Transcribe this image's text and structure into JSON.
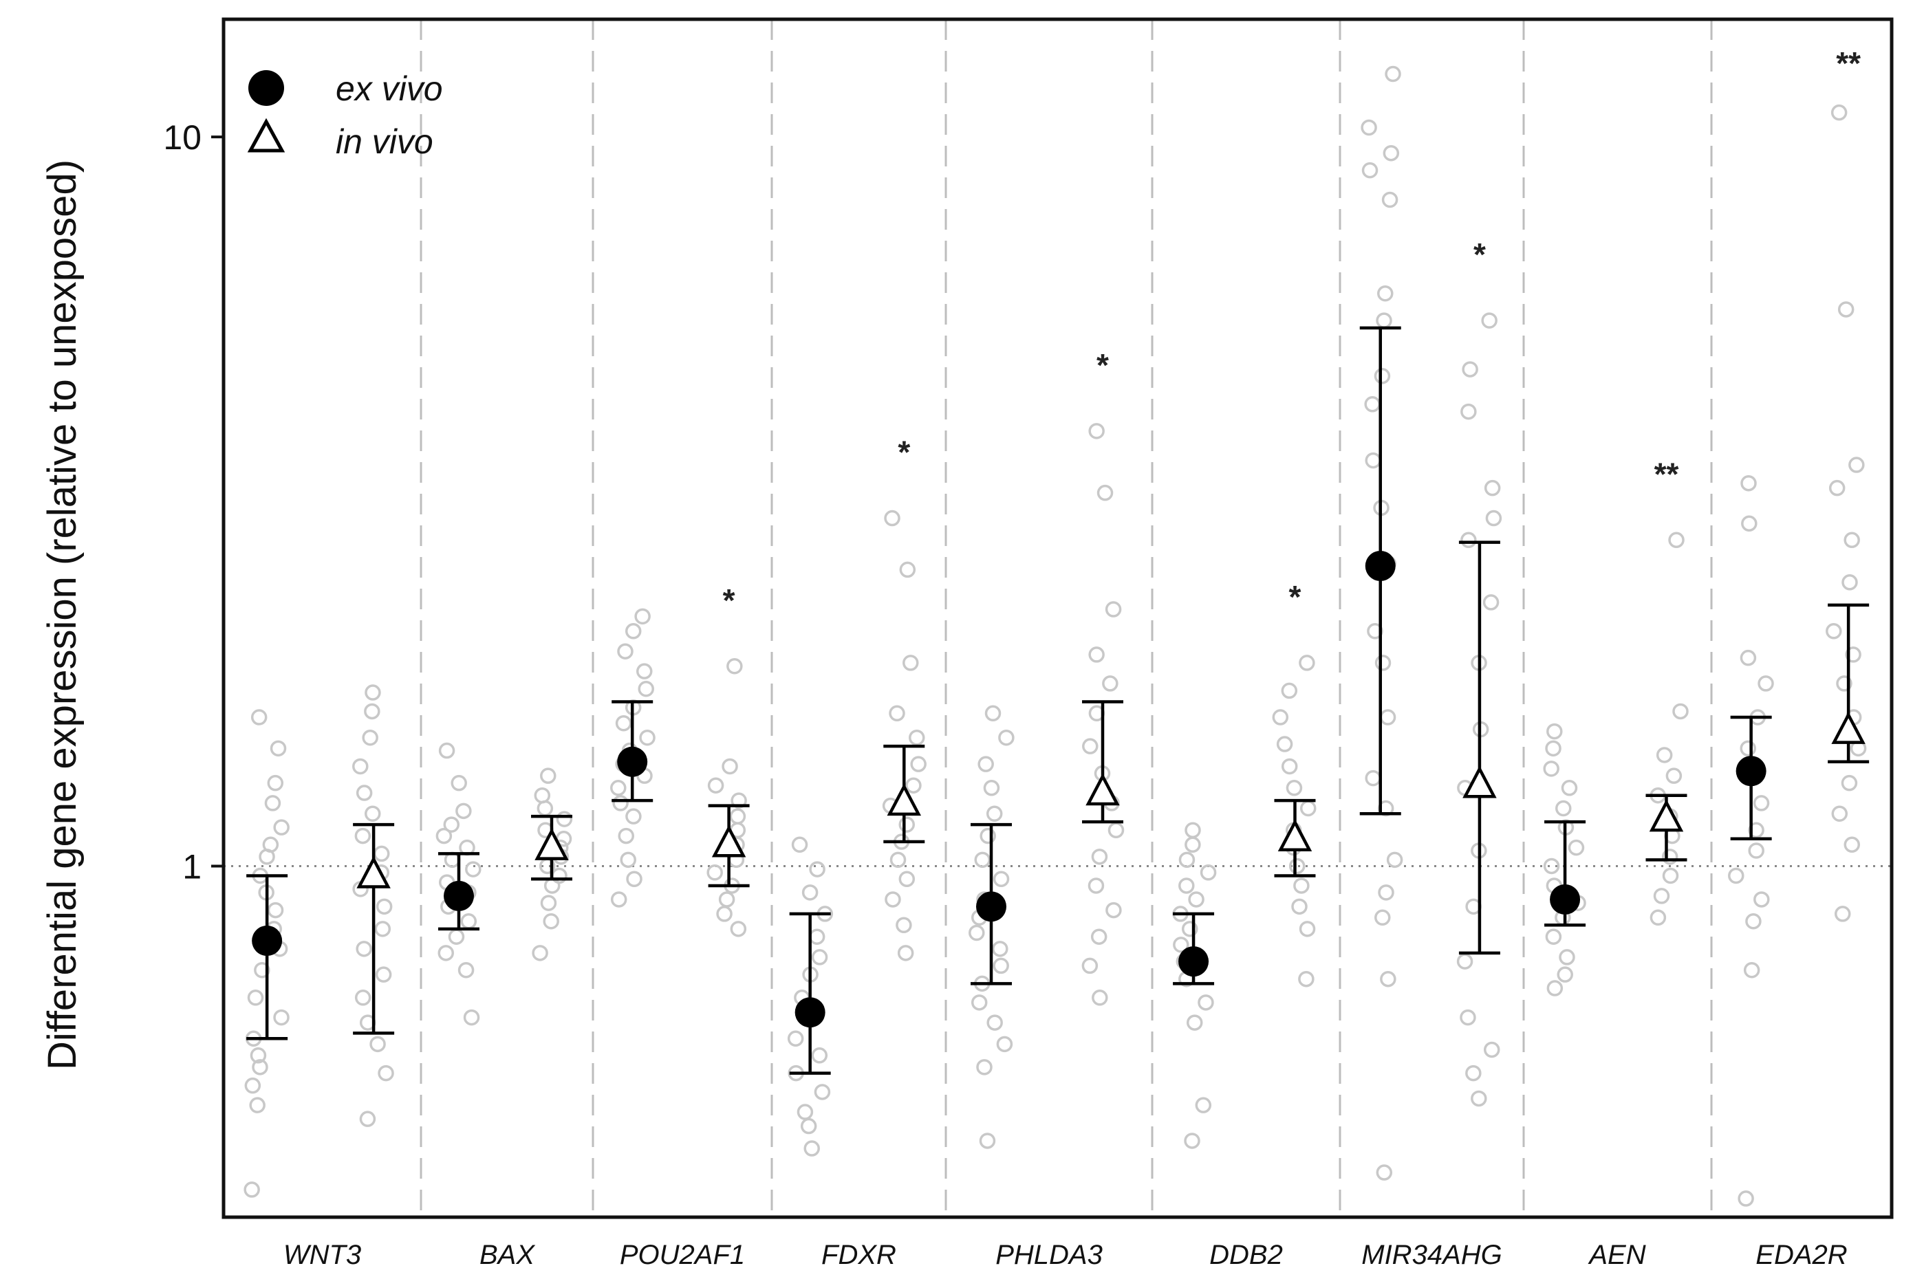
{
  "chart_data": {
    "type": "scatter",
    "ylabel": "Differential gene expression (relative to unexposed)",
    "xlabel": "",
    "yscale": "log",
    "ylim": [
      0.33,
      14.5
    ],
    "yticks": [
      1,
      10
    ],
    "ytick_labels": [
      "1",
      "10"
    ],
    "reference_line": 1,
    "grid": false,
    "legend_position": "top-left",
    "categories": [
      "WNT3",
      "BAX",
      "POU2AF1",
      "FDXR",
      "PHLDA3",
      "DDB2",
      "MIR34AHG",
      "AEN",
      "EDA2R"
    ],
    "series": [
      {
        "name": "ex vivo",
        "marker": "filled-circle",
        "mean": [
          0.79,
          0.91,
          1.39,
          0.63,
          0.88,
          0.74,
          2.58,
          0.9,
          1.35
        ],
        "lower": [
          0.58,
          0.82,
          1.23,
          0.52,
          0.69,
          0.69,
          1.18,
          0.83,
          1.09
        ],
        "upper": [
          0.97,
          1.04,
          1.68,
          0.86,
          1.14,
          0.86,
          5.47,
          1.15,
          1.6
        ]
      },
      {
        "name": "in vivo",
        "marker": "open-triangle",
        "mean": [
          0.97,
          1.06,
          1.07,
          1.22,
          1.26,
          1.09,
          1.29,
          1.16,
          1.53
        ],
        "lower": [
          0.59,
          0.96,
          0.94,
          1.08,
          1.15,
          0.97,
          0.76,
          1.02,
          1.39
        ],
        "upper": [
          1.14,
          1.17,
          1.21,
          1.46,
          1.68,
          1.23,
          2.78,
          1.25,
          2.28
        ]
      }
    ],
    "significance": [
      "",
      "",
      "*",
      "*",
      "*",
      "*",
      "*",
      "**",
      "**"
    ],
    "individual_points": [
      {
        "ex": [
          0.36,
          0.47,
          0.5,
          0.53,
          0.55,
          0.58,
          0.62,
          0.66,
          0.72,
          0.77,
          0.82,
          0.87,
          0.92,
          0.97,
          1.03,
          1.07,
          1.13,
          1.22,
          1.3,
          1.45,
          1.6
        ],
        "in": [
          0.45,
          0.52,
          0.57,
          0.61,
          0.66,
          0.71,
          0.77,
          0.82,
          0.88,
          0.93,
          0.98,
          1.04,
          1.1,
          1.18,
          1.26,
          1.37,
          1.5,
          1.63,
          1.73
        ]
      },
      {
        "ex": [
          0.62,
          0.72,
          0.76,
          0.8,
          0.84,
          0.88,
          0.92,
          0.95,
          0.99,
          1.02,
          1.06,
          1.1,
          1.14,
          1.19,
          1.3,
          1.44
        ],
        "in": [
          0.76,
          0.84,
          0.89,
          0.94,
          0.97,
          1.0,
          1.03,
          1.06,
          1.09,
          1.12,
          1.16,
          1.2,
          1.25,
          1.33
        ]
      },
      {
        "ex": [
          0.9,
          0.96,
          1.02,
          1.1,
          1.17,
          1.22,
          1.28,
          1.33,
          1.38,
          1.44,
          1.5,
          1.57,
          1.65,
          1.75,
          1.85,
          1.97,
          2.1,
          2.2
        ],
        "in": [
          0.82,
          0.86,
          0.9,
          0.94,
          0.98,
          1.02,
          1.07,
          1.12,
          1.17,
          1.23,
          1.29,
          1.37,
          1.88
        ]
      },
      {
        "ex": [
          0.41,
          0.44,
          0.46,
          0.49,
          0.52,
          0.55,
          0.58,
          0.62,
          0.66,
          0.71,
          0.75,
          0.8,
          0.86,
          0.92,
          0.99,
          1.07
        ],
        "in": [
          0.76,
          0.83,
          0.9,
          0.96,
          1.02,
          1.08,
          1.14,
          1.21,
          1.29,
          1.38,
          1.5,
          1.62,
          1.9,
          2.55,
          3.0
        ]
      },
      {
        "ex": [
          0.42,
          0.53,
          0.57,
          0.61,
          0.65,
          0.69,
          0.73,
          0.77,
          0.81,
          0.85,
          0.9,
          0.96,
          1.02,
          1.1,
          1.18,
          1.28,
          1.38,
          1.5,
          1.62
        ],
        "in": [
          0.66,
          0.73,
          0.8,
          0.87,
          0.94,
          1.03,
          1.12,
          1.22,
          1.34,
          1.46,
          1.62,
          1.78,
          1.95,
          2.25,
          3.25,
          3.95
        ]
      },
      {
        "ex": [
          0.42,
          0.47,
          0.61,
          0.65,
          0.7,
          0.74,
          0.78,
          0.82,
          0.86,
          0.9,
          0.94,
          0.98,
          1.02,
          1.07,
          1.12
        ],
        "in": [
          0.7,
          0.82,
          0.88,
          0.94,
          1.0,
          1.06,
          1.12,
          1.2,
          1.28,
          1.37,
          1.47,
          1.6,
          1.74,
          1.9
        ]
      },
      {
        "ex": [
          0.38,
          0.7,
          0.85,
          0.92,
          1.02,
          1.2,
          1.32,
          1.6,
          1.9,
          2.1,
          2.6,
          3.1,
          3.6,
          4.3,
          4.7,
          5.6,
          6.1,
          8.2,
          9.0,
          9.5,
          10.3,
          12.2
        ],
        "in": [
          0.48,
          0.52,
          0.56,
          0.62,
          0.74,
          0.88,
          1.05,
          1.28,
          1.54,
          1.9,
          2.3,
          2.8,
          3.0,
          3.3,
          4.2,
          4.8,
          5.6
        ]
      },
      {
        "ex": [
          0.68,
          0.71,
          0.75,
          0.8,
          0.85,
          0.89,
          0.94,
          1.0,
          1.06,
          1.13,
          1.2,
          1.28,
          1.36,
          1.45,
          1.53
        ],
        "in": [
          0.85,
          0.91,
          0.97,
          1.03,
          1.1,
          1.17,
          1.25,
          1.33,
          1.42,
          1.63,
          2.8
        ]
      },
      {
        "ex": [
          0.35,
          0.72,
          0.84,
          0.9,
          0.97,
          1.05,
          1.12,
          1.22,
          1.33,
          1.45,
          1.6,
          1.78,
          1.93,
          2.95,
          3.35
        ],
        "in": [
          0.86,
          1.07,
          1.18,
          1.3,
          1.45,
          1.6,
          1.78,
          1.95,
          2.1,
          2.45,
          2.8,
          3.3,
          3.55,
          5.8,
          10.8
        ]
      }
    ]
  }
}
